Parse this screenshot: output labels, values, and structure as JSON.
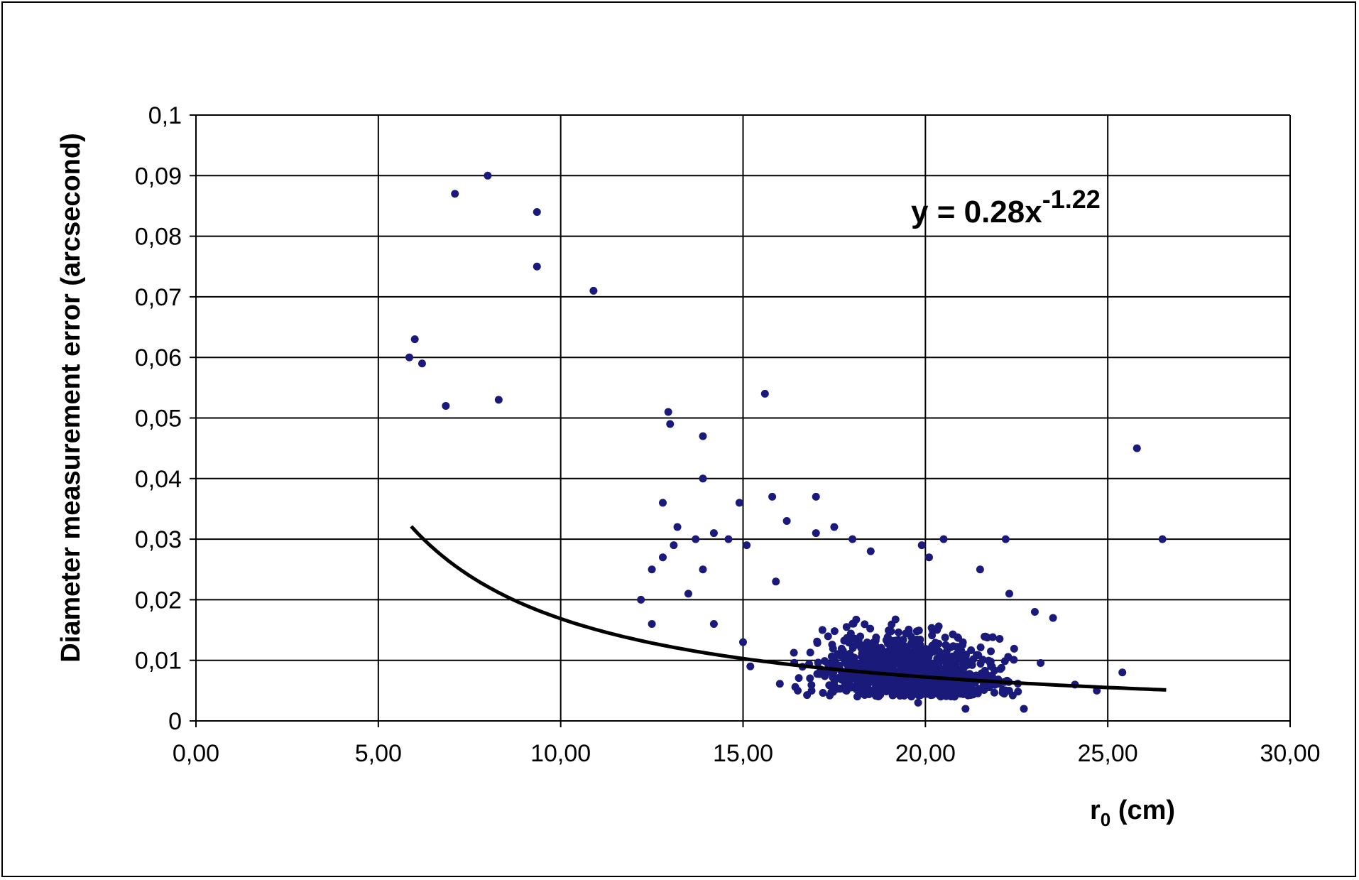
{
  "chart_data": {
    "type": "scatter",
    "title": "",
    "xlabel": "r",
    "xlabel_sub": "0",
    "xlabel_suffix": " (cm)",
    "ylabel": "Diameter measurement error (arcsecond)",
    "xlim": [
      0,
      30
    ],
    "ylim": [
      0,
      0.1
    ],
    "x_ticks": [
      0,
      5,
      10,
      15,
      20,
      25,
      30
    ],
    "x_tick_labels": [
      "0,00",
      "5,00",
      "10,00",
      "15,00",
      "20,00",
      "25,00",
      "30,00"
    ],
    "y_ticks": [
      0,
      0.01,
      0.02,
      0.03,
      0.04,
      0.05,
      0.06,
      0.07,
      0.08,
      0.09,
      0.1
    ],
    "y_tick_labels": [
      "0",
      "0,01",
      "0,02",
      "0,03",
      "0,04",
      "0,05",
      "0,06",
      "0,07",
      "0,08",
      "0,09",
      "0,1"
    ],
    "grid": true,
    "marker_color": "#1a1a7a",
    "trend_color": "#000000",
    "trendline": {
      "type": "power",
      "a": 0.28,
      "b": -1.22,
      "x_range": [
        5.9,
        26.6
      ],
      "label_base": "y = 0.28x",
      "label_exp": "-1.22"
    },
    "series": [
      {
        "points": [
          [
            5.85,
            0.06
          ],
          [
            6.0,
            0.063
          ],
          [
            6.2,
            0.059
          ],
          [
            6.85,
            0.052
          ],
          [
            7.1,
            0.087
          ],
          [
            8.0,
            0.09
          ],
          [
            8.3,
            0.053
          ],
          [
            9.35,
            0.084
          ],
          [
            9.35,
            0.075
          ],
          [
            10.9,
            0.071
          ],
          [
            12.2,
            0.02
          ],
          [
            12.5,
            0.016
          ],
          [
            12.5,
            0.025
          ],
          [
            12.8,
            0.036
          ],
          [
            12.8,
            0.027
          ],
          [
            12.95,
            0.051
          ],
          [
            13.0,
            0.049
          ],
          [
            13.1,
            0.029
          ],
          [
            13.2,
            0.032
          ],
          [
            13.5,
            0.021
          ],
          [
            13.7,
            0.03
          ],
          [
            13.9,
            0.047
          ],
          [
            13.9,
            0.04
          ],
          [
            13.9,
            0.025
          ],
          [
            14.2,
            0.031
          ],
          [
            14.2,
            0.016
          ],
          [
            14.6,
            0.03
          ],
          [
            14.9,
            0.036
          ],
          [
            15.0,
            0.013
          ],
          [
            15.1,
            0.029
          ],
          [
            15.2,
            0.009
          ],
          [
            15.6,
            0.054
          ],
          [
            15.8,
            0.037
          ],
          [
            15.9,
            0.023
          ],
          [
            16.2,
            0.033
          ],
          [
            16.5,
            0.005
          ],
          [
            17.0,
            0.037
          ],
          [
            17.0,
            0.031
          ],
          [
            17.3,
            0.008
          ],
          [
            17.5,
            0.032
          ],
          [
            17.8,
            0.006
          ],
          [
            18.0,
            0.03
          ],
          [
            18.5,
            0.028
          ],
          [
            18.9,
            0.005
          ],
          [
            19.4,
            0.006
          ],
          [
            19.8,
            0.003
          ],
          [
            19.9,
            0.029
          ],
          [
            20.1,
            0.027
          ],
          [
            20.5,
            0.03
          ],
          [
            20.8,
            0.004
          ],
          [
            21.1,
            0.002
          ],
          [
            21.5,
            0.025
          ],
          [
            21.8,
            0.009
          ],
          [
            22.2,
            0.03
          ],
          [
            22.3,
            0.021
          ],
          [
            22.7,
            0.002
          ],
          [
            23.0,
            0.018
          ],
          [
            23.5,
            0.017
          ],
          [
            24.1,
            0.006
          ],
          [
            24.7,
            0.005
          ],
          [
            25.4,
            0.008
          ],
          [
            25.8,
            0.045
          ],
          [
            26.5,
            0.03
          ]
        ]
      }
    ],
    "cluster_note": "dense cloud of points approx. r0 15–23.5 cm, error 0.003–0.028"
  }
}
